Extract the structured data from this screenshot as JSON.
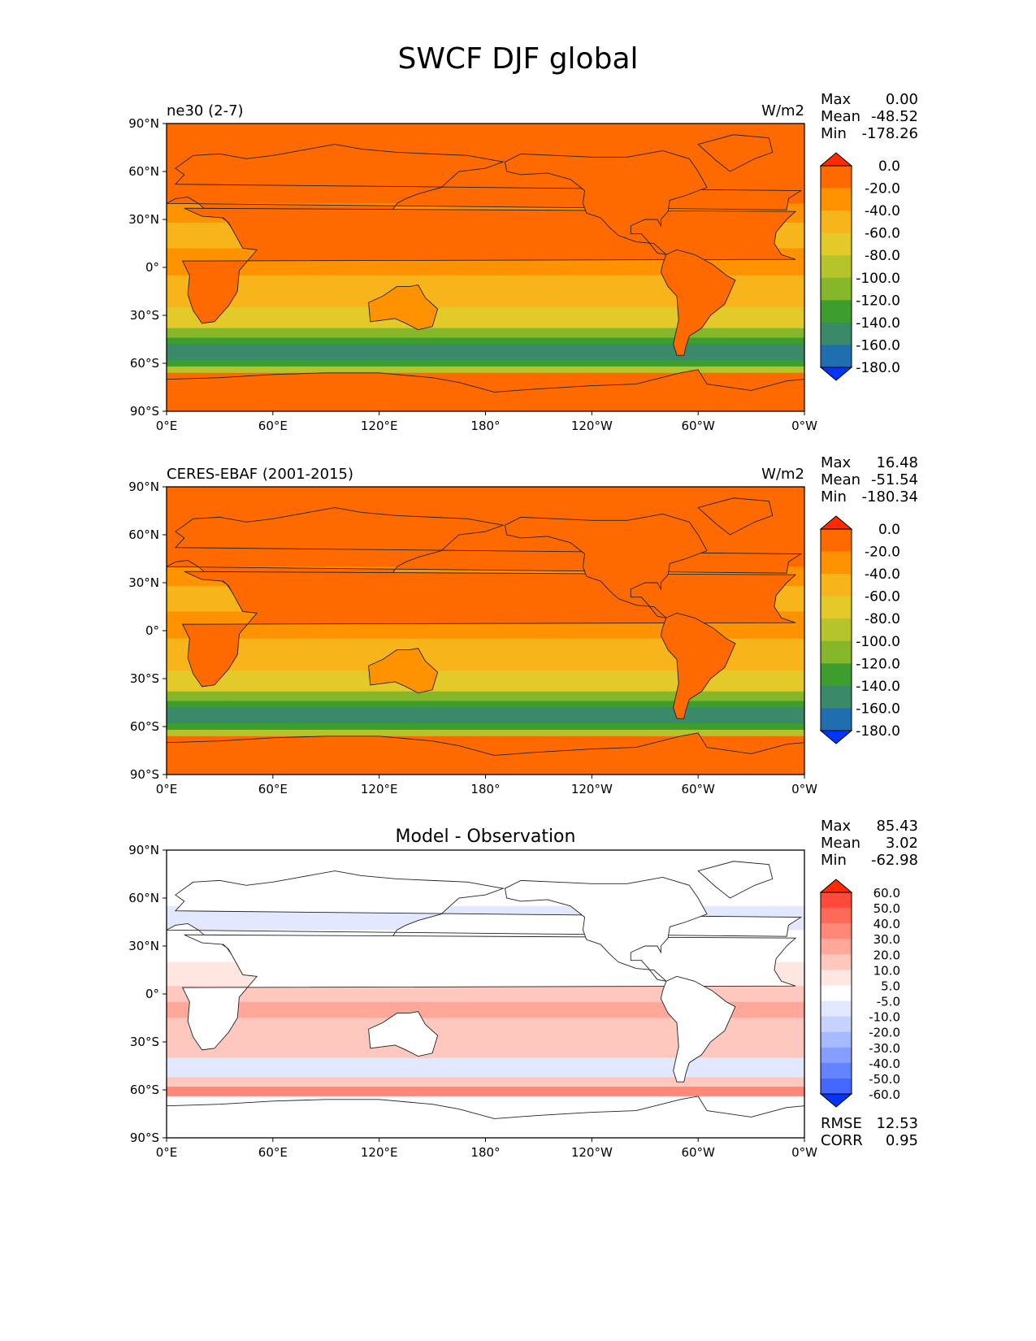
{
  "figure": {
    "title": "SWCF DJF global"
  },
  "axes": {
    "lon_ticks": [
      "0°E",
      "60°E",
      "120°E",
      "180°",
      "120°W",
      "60°W",
      "0°W"
    ],
    "lat_ticks": [
      "90°N",
      "60°N",
      "30°N",
      "0°",
      "30°S",
      "60°S",
      "90°S"
    ]
  },
  "chart_data": [
    {
      "type": "heatmap",
      "title": "",
      "left_label": "ne30 (2-7)",
      "units": "W/m2",
      "stats": {
        "max_label": "Max",
        "max": "0.00",
        "mean_label": "Mean",
        "mean": "-48.52",
        "min_label": "Min",
        "min": "-178.26"
      },
      "colorbar": {
        "levels": [
          "0.0",
          "-20.0",
          "-40.0",
          "-60.0",
          "-80.0",
          "-100.0",
          "-120.0",
          "-140.0",
          "-160.0",
          "-180.0"
        ],
        "colors": [
          "#ff2a00",
          "#ff6a00",
          "#ff9200",
          "#f7b51b",
          "#e4c92a",
          "#b4c42a",
          "#86b72a",
          "#3d9d2d",
          "#3a8a6a",
          "#1f6fb0",
          "#0034ff"
        ]
      }
    },
    {
      "type": "heatmap",
      "title": "",
      "left_label": "CERES-EBAF (2001-2015)",
      "units": "W/m2",
      "stats": {
        "max_label": "Max",
        "max": "16.48",
        "mean_label": "Mean",
        "mean": "-51.54",
        "min_label": "Min",
        "min": "-180.34"
      },
      "colorbar": {
        "levels": [
          "0.0",
          "-20.0",
          "-40.0",
          "-60.0",
          "-80.0",
          "-100.0",
          "-120.0",
          "-140.0",
          "-160.0",
          "-180.0"
        ],
        "colors": [
          "#ff2a00",
          "#ff6a00",
          "#ff9200",
          "#f7b51b",
          "#e4c92a",
          "#b4c42a",
          "#86b72a",
          "#3d9d2d",
          "#3a8a6a",
          "#1f6fb0",
          "#0034ff"
        ]
      }
    },
    {
      "type": "heatmap",
      "title": "Model - Observation",
      "left_label": "",
      "units": "",
      "stats": {
        "max_label": "Max",
        "max": "85.43",
        "mean_label": "Mean",
        "mean": "3.02",
        "min_label": "Min",
        "min": "-62.98"
      },
      "extra_stats": {
        "rmse_label": "RMSE",
        "rmse": "12.53",
        "corr_label": "CORR",
        "corr": "0.95"
      },
      "colorbar": {
        "levels": [
          "60.0",
          "50.0",
          "40.0",
          "30.0",
          "20.0",
          "10.0",
          "5.0",
          "-5.0",
          "-10.0",
          "-20.0",
          "-30.0",
          "-40.0",
          "-50.0",
          "-60.0"
        ],
        "colors": [
          "#ff2a00",
          "#ff4a3a",
          "#ff6a58",
          "#ff8878",
          "#ffa89a",
          "#ffc8be",
          "#ffe6e0",
          "#ffffff",
          "#e2e8ff",
          "#c6d2ff",
          "#a6baff",
          "#869eff",
          "#6484ff",
          "#4468ff",
          "#0034ff"
        ]
      }
    }
  ]
}
